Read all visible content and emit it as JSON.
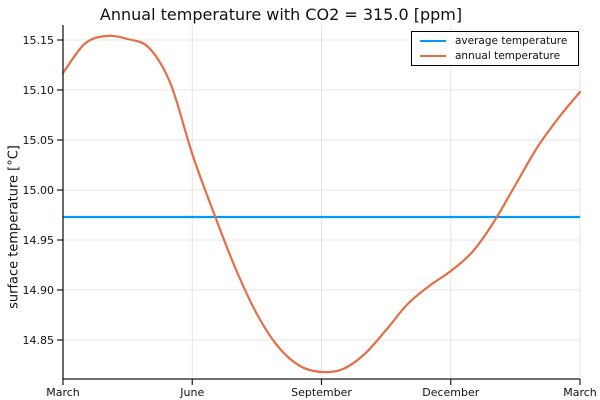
{
  "chart_data": {
    "type": "line",
    "title": "Annual temperature with CO2 = 315.0 [ppm]",
    "xlabel": "",
    "ylabel": "surface temperature [°C]",
    "grid": true,
    "legend_position": "top-right",
    "x_axis": {
      "unit": "month of year (March to March)",
      "range_months": [
        0,
        12
      ],
      "tick_months": [
        0,
        3,
        6,
        9,
        12
      ],
      "tick_labels": [
        "March",
        "June",
        "September",
        "December",
        "March"
      ]
    },
    "y_axis": {
      "range": [
        14.811,
        15.165
      ],
      "ticks": [
        15.15,
        15.1,
        15.05,
        15.0,
        14.95,
        14.9,
        14.85
      ],
      "tick_labels": [
        "15.15",
        "15.10",
        "15.05",
        "15.00",
        "14.95",
        "14.90",
        "14.85"
      ]
    },
    "series": [
      {
        "name": "average temperature",
        "type": "hline",
        "value": 14.973,
        "color": "#009AFA"
      },
      {
        "name": "annual temperature",
        "type": "line",
        "color": "#E36F47",
        "x_months": [
          0,
          0.5,
          1,
          1.5,
          2,
          2.5,
          3,
          3.5,
          4,
          4.5,
          5,
          5.5,
          6,
          6.5,
          7,
          7.5,
          8,
          8.5,
          9,
          9.5,
          10,
          10.5,
          11,
          11.5,
          12
        ],
        "values": [
          15.117,
          15.146,
          15.154,
          15.151,
          15.142,
          15.106,
          15.036,
          14.977,
          14.922,
          14.876,
          14.843,
          14.824,
          14.818,
          14.821,
          14.836,
          14.86,
          14.886,
          14.904,
          14.919,
          14.938,
          14.968,
          15.005,
          15.042,
          15.072,
          15.098
        ]
      }
    ]
  },
  "legend": {
    "entries": [
      {
        "label": "average temperature",
        "color": "#009AFA"
      },
      {
        "label": "annual temperature",
        "color": "#E36F47"
      }
    ]
  },
  "style": {
    "spine_color": "#1a1a1a",
    "grid_color": "#e4e4e4",
    "text_color": "#111111"
  }
}
